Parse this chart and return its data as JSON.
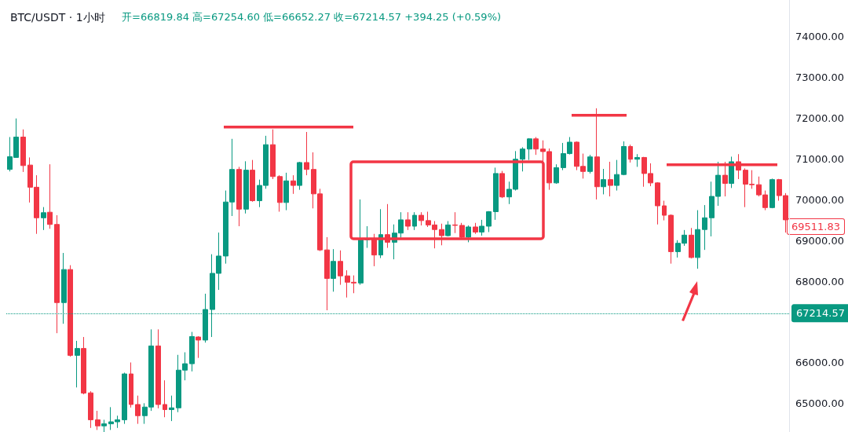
{
  "chart_data": {
    "type": "candlestick",
    "title": "BTC/USDT · 1小时",
    "subtitle": "开=66819.84 高=67254.60 低=66652.27 收=67214.57 +394.25 (+0.59%)",
    "categories": [
      null,
      null,
      null,
      null,
      null,
      null,
      null,
      null,
      null,
      null,
      null,
      null,
      null,
      null,
      null,
      null,
      null,
      null,
      null,
      null,
      null,
      null,
      null,
      null,
      null,
      null,
      null,
      null,
      null,
      null,
      null,
      null,
      null,
      null,
      null,
      null,
      null,
      null,
      null,
      null,
      null,
      null,
      null,
      null,
      null,
      null,
      null,
      null,
      null,
      null,
      null,
      null,
      null,
      null,
      null,
      null,
      null,
      null,
      null,
      null,
      null,
      null,
      null,
      null,
      null,
      null,
      null,
      null,
      null,
      null,
      null,
      null,
      null,
      null,
      null,
      null,
      null,
      null,
      null,
      null,
      null,
      null,
      null,
      null,
      null,
      null,
      null,
      null,
      null,
      null,
      null,
      null,
      null,
      null,
      null,
      null,
      null,
      null,
      null,
      null,
      null,
      null,
      null,
      null,
      null,
      null,
      null,
      null,
      null,
      null,
      null,
      null,
      null,
      null,
      null,
      null
    ],
    "ohlc": [
      [
        70744,
        71537,
        70694,
        71056
      ],
      [
        71037,
        71994,
        71037,
        71537
      ],
      [
        71537,
        71725,
        70681,
        70837
      ],
      [
        70850,
        71037,
        69931,
        70306
      ],
      [
        70306,
        70600,
        69162,
        69556
      ],
      [
        69556,
        69819,
        69256,
        69681
      ],
      [
        69693,
        70869,
        69287,
        69393
      ],
      [
        69393,
        69619,
        66725,
        67475
      ],
      [
        67475,
        68693,
        66956,
        68287
      ],
      [
        68287,
        68393,
        66150,
        66181
      ],
      [
        66181,
        66537,
        65393,
        66350
      ],
      [
        66350,
        66631,
        65225,
        65256
      ],
      [
        65260,
        65300,
        64400,
        64600
      ],
      [
        64600,
        64820,
        64350,
        64450
      ],
      [
        64450,
        64600,
        64300,
        64500
      ],
      [
        64500,
        64910,
        64350,
        64550
      ],
      [
        64550,
        64700,
        64400,
        64600
      ],
      [
        64600,
        65756,
        64500,
        65725
      ],
      [
        65725,
        66006,
        64900,
        64975
      ],
      [
        64975,
        65193,
        64500,
        64700
      ],
      [
        64700,
        65006,
        64500,
        64912
      ],
      [
        64912,
        66818,
        64818,
        66412
      ],
      [
        66412,
        66818,
        64881,
        64975
      ],
      [
        64975,
        65568,
        64662,
        64850
      ],
      [
        64850,
        65193,
        64568,
        64893
      ],
      [
        64893,
        66193,
        64787,
        65818
      ],
      [
        65818,
        66256,
        65568,
        65975
      ],
      [
        65975,
        66756,
        65787,
        66643
      ],
      [
        66631,
        66650,
        66118,
        66556
      ],
      [
        66556,
        67693,
        66493,
        67306
      ],
      [
        67306,
        68662,
        66631,
        68193
      ],
      [
        68193,
        69193,
        67787,
        68618
      ],
      [
        68618,
        70225,
        68431,
        69943
      ],
      [
        69943,
        71493,
        69600,
        70743
      ],
      [
        70743,
        70806,
        69350,
        69768
      ],
      [
        69768,
        70943,
        69662,
        70725
      ],
      [
        70725,
        70975,
        69950,
        69975
      ],
      [
        69975,
        70493,
        69818,
        70350
      ],
      [
        70350,
        71568,
        70268,
        71350
      ],
      [
        71350,
        71725,
        70506,
        70568
      ],
      [
        70568,
        70600,
        69706,
        69931
      ],
      [
        69931,
        70662,
        69743,
        70462
      ],
      [
        70462,
        70600,
        70143,
        70350
      ],
      [
        70350,
        70930,
        70243,
        70912
      ],
      [
        70912,
        71662,
        70600,
        70743
      ],
      [
        70743,
        71162,
        69787,
        70143
      ],
      [
        70143,
        70268,
        68740,
        68768
      ],
      [
        68768,
        69081,
        67287,
        68068
      ],
      [
        68068,
        68787,
        67743,
        68487
      ],
      [
        68487,
        68756,
        67912,
        68131
      ],
      [
        68131,
        68268,
        67600,
        67975
      ],
      [
        67975,
        68143,
        67706,
        67956
      ],
      [
        67956,
        70006,
        67912,
        69018
      ],
      [
        69018,
        69350,
        68818,
        69050
      ],
      [
        69050,
        69162,
        68368,
        68643
      ],
      [
        68643,
        69768,
        68568,
        69143
      ],
      [
        69143,
        69893,
        68818,
        68956
      ],
      [
        68956,
        69393,
        68537,
        69181
      ],
      [
        69181,
        69693,
        69068,
        69506
      ],
      [
        69506,
        69693,
        69256,
        69350
      ],
      [
        69350,
        69693,
        69256,
        69618
      ],
      [
        69618,
        69693,
        69368,
        69487
      ],
      [
        69487,
        69706,
        69331,
        69381
      ],
      [
        69381,
        69475,
        68806,
        69268
      ],
      [
        69268,
        69412,
        68881,
        69118
      ],
      [
        69118,
        69475,
        69100,
        69381
      ],
      [
        69381,
        69693,
        69181,
        69370
      ],
      [
        69370,
        69431,
        69056,
        69081
      ],
      [
        69081,
        69368,
        68956,
        69331
      ],
      [
        69331,
        69431,
        69162,
        69206
      ],
      [
        69206,
        69506,
        69118,
        69350
      ],
      [
        69350,
        69720,
        69206,
        69706
      ],
      [
        69706,
        70787,
        69506,
        70643
      ],
      [
        70643,
        70706,
        70040,
        70068
      ],
      [
        70068,
        70443,
        69893,
        70256
      ],
      [
        70256,
        71193,
        70225,
        70993
      ],
      [
        70993,
        71287,
        70693,
        71243
      ],
      [
        71243,
        71510,
        70975,
        71493
      ],
      [
        71493,
        71537,
        71100,
        71243
      ],
      [
        71243,
        71456,
        70787,
        71181
      ],
      [
        71181,
        71256,
        70243,
        70412
      ],
      [
        70412,
        70868,
        70390,
        70787
      ],
      [
        70787,
        71393,
        70725,
        71131
      ],
      [
        71131,
        71537,
        71110,
        71412
      ],
      [
        71412,
        71430,
        70725,
        70818
      ],
      [
        70818,
        71131,
        70518,
        70693
      ],
      [
        70693,
        71100,
        70643,
        71050
      ],
      [
        71050,
        72243,
        70006,
        70318
      ],
      [
        70318,
        70756,
        70131,
        70493
      ],
      [
        70493,
        70931,
        70081,
        70350
      ],
      [
        70350,
        70975,
        70225,
        70618
      ],
      [
        70618,
        71431,
        70600,
        71306
      ],
      [
        71306,
        71350,
        70912,
        70993
      ],
      [
        70993,
        71118,
        70806,
        71037
      ],
      [
        71037,
        71050,
        70318,
        70643
      ],
      [
        70643,
        70893,
        70331,
        70412
      ],
      [
        70412,
        70430,
        69393,
        69850
      ],
      [
        69850,
        69975,
        69493,
        69618
      ],
      [
        69618,
        69640,
        68431,
        68725
      ],
      [
        68725,
        69006,
        68581,
        68931
      ],
      [
        68931,
        69256,
        68868,
        69131
      ],
      [
        69131,
        69306,
        68560,
        68581
      ],
      [
        68581,
        69743,
        68306,
        69268
      ],
      [
        69268,
        69868,
        68768,
        69556
      ],
      [
        69556,
        70443,
        69100,
        70081
      ],
      [
        70081,
        70931,
        69850,
        70600
      ],
      [
        70600,
        70931,
        70081,
        70400
      ],
      [
        70400,
        71056,
        70287,
        70931
      ],
      [
        70931,
        71118,
        70506,
        70725
      ],
      [
        70725,
        70768,
        69818,
        70381
      ],
      [
        70381,
        70725,
        70268,
        70368
      ],
      [
        70368,
        70568,
        70081,
        70118
      ],
      [
        70118,
        70225,
        69743,
        69806
      ],
      [
        69806,
        70518,
        69790,
        70493
      ],
      [
        70493,
        70510,
        69975,
        70100
      ],
      [
        70100,
        70162,
        69193,
        69506
      ]
    ],
    "colors": [
      "#089981",
      "#089981",
      "#f23645",
      "#f23645",
      "#f23645",
      "#089981",
      "#f23645",
      "#f23645",
      "#089981",
      "#f23645",
      "#089981",
      "#f23645",
      "#f23645",
      "#f23645",
      "#089981",
      "#089981",
      "#089981",
      "#089981",
      "#f23645",
      "#f23645",
      "#089981",
      "#089981",
      "#f23645",
      "#f23645",
      "#089981",
      "#089981",
      "#089981",
      "#089981",
      "#f23645",
      "#089981",
      "#089981",
      "#089981",
      "#089981",
      "#089981",
      "#f23645",
      "#089981",
      "#f23645",
      "#089981",
      "#089981",
      "#f23645",
      "#f23645",
      "#089981",
      "#f23645",
      "#089981",
      "#f23645",
      "#f23645",
      "#f23645",
      "#f23645",
      "#089981",
      "#f23645",
      "#f23645",
      "#f23645",
      "#089981",
      "#089981",
      "#f23645",
      "#089981",
      "#f23645",
      "#089981",
      "#089981",
      "#f23645",
      "#089981",
      "#f23645",
      "#f23645",
      "#f23645",
      "#f23645",
      "#089981",
      "#f23645",
      "#f23645",
      "#089981",
      "#f23645",
      "#089981",
      "#089981",
      "#089981",
      "#f23645",
      "#089981",
      "#089981",
      "#089981",
      "#089981",
      "#f23645",
      "#f23645",
      "#f23645",
      "#089981",
      "#089981",
      "#089981",
      "#f23645",
      "#f23645",
      "#089981",
      "#f23645",
      "#089981",
      "#f23645",
      "#089981",
      "#089981",
      "#f23645",
      "#089981",
      "#f23645",
      "#f23645",
      "#f23645",
      "#f23645",
      "#f23645",
      "#089981",
      "#089981",
      "#f23645",
      "#089981",
      "#089981",
      "#089981",
      "#089981",
      "#f23645",
      "#089981",
      "#f23645",
      "#f23645",
      "#f23645",
      "#f23645",
      "#f23645",
      "#089981",
      "#f23645",
      "#f23645"
    ],
    "ylim": [
      64300,
      74900
    ],
    "yticks": [
      {
        "value": 65000,
        "label": "65000.00"
      },
      {
        "value": 66000,
        "label": "66000.00"
      },
      {
        "value": 68000,
        "label": "68000.00"
      },
      {
        "value": 69000,
        "label": "69000.00"
      },
      {
        "value": 70000,
        "label": "70000.00"
      },
      {
        "value": 71000,
        "label": "71000.00"
      },
      {
        "value": 72000,
        "label": "72000.00"
      },
      {
        "value": 73000,
        "label": "73000.00"
      },
      {
        "value": 74000,
        "label": "74000.00"
      }
    ],
    "ref_lines": [
      {
        "axis": "y",
        "value": 67214.57,
        "label": "67214.57",
        "color": "#089981",
        "line_style": "dotted"
      }
    ],
    "annotations": [
      "69511.83"
    ],
    "tick_labels": "y",
    "grid": false
  }
}
